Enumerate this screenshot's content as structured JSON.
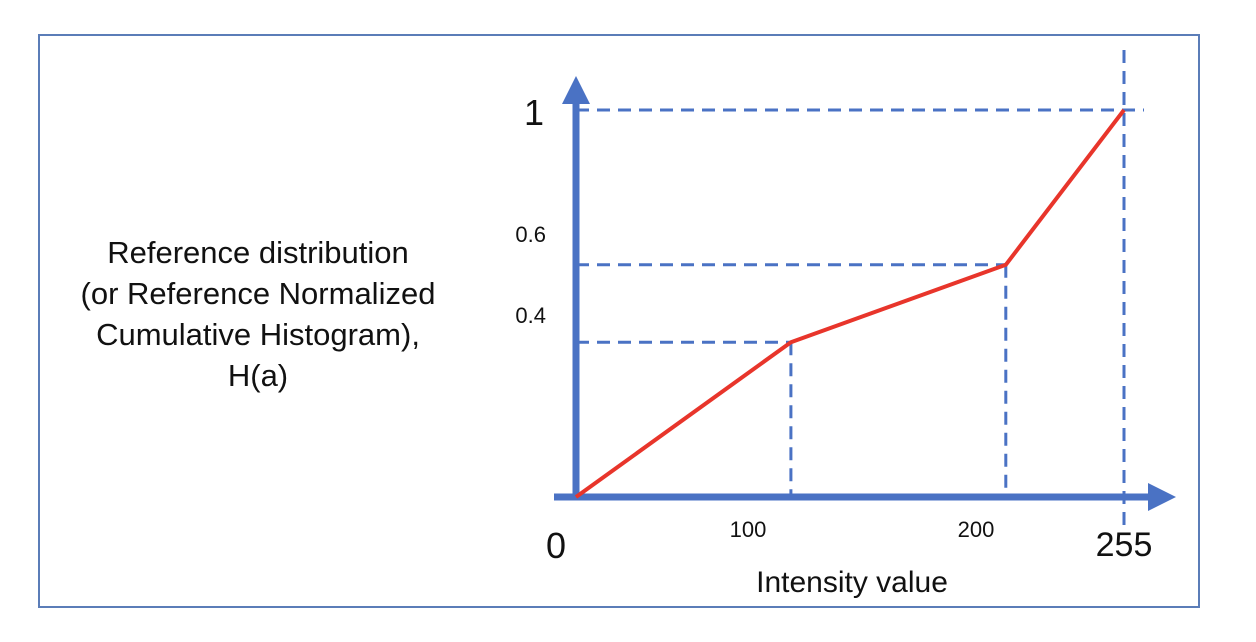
{
  "caption": {
    "lines": [
      "Reference distribution",
      "(or Reference Normalized",
      "Cumulative Histogram),",
      "H(a)"
    ]
  },
  "chart_data": {
    "type": "line",
    "title": "",
    "xlabel": "Intensity value",
    "ylabel": "",
    "xlim": [
      0,
      255
    ],
    "ylim": [
      0,
      1
    ],
    "x_ticks": [
      "100",
      "200",
      "255"
    ],
    "y_ticks": [
      "0.4",
      "0.6",
      "1"
    ],
    "origin_label": "0",
    "grid": false,
    "series": [
      {
        "x": [
          0,
          100,
          200,
          255
        ],
        "y": [
          0,
          0.4,
          0.6,
          1
        ],
        "color": "#e8352b"
      }
    ],
    "guide_lines": [
      {
        "x": 100,
        "y": 0.4
      },
      {
        "x": 200,
        "y": 0.6
      },
      {
        "x": 255,
        "y": 1
      }
    ],
    "colors": {
      "axis": "#4a72c4",
      "guide": "#4a72c4",
      "line": "#e8352b"
    }
  }
}
